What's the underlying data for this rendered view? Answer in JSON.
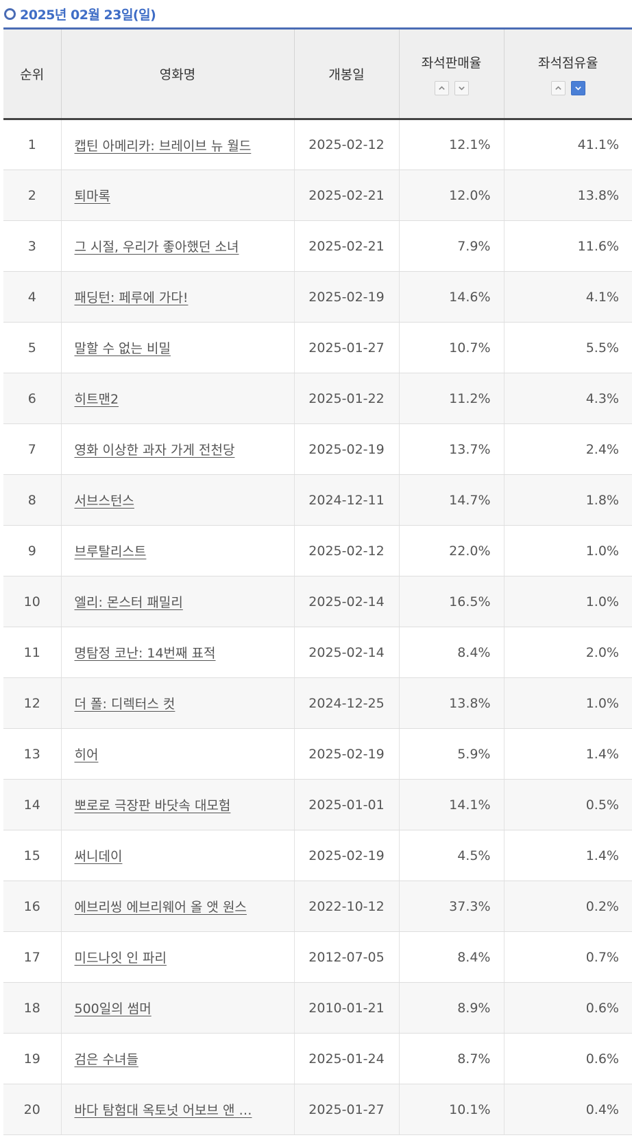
{
  "date_heading": "2025년 02월 23일(일)",
  "columns": {
    "rank": "순위",
    "title": "영화명",
    "release": "개봉일",
    "seat_sales": "좌석판매율",
    "seat_share": "좌석점유율"
  },
  "sort": {
    "seat_sales": "none",
    "seat_share": "descending"
  },
  "rows": [
    {
      "rank": "1",
      "title": "캡틴 아메리카: 브레이브 뉴 월드",
      "release": "2025-02-12",
      "seat_sales": "12.1%",
      "seat_share": "41.1%"
    },
    {
      "rank": "2",
      "title": "퇴마록",
      "release": "2025-02-21",
      "seat_sales": "12.0%",
      "seat_share": "13.8%"
    },
    {
      "rank": "3",
      "title": "그 시절, 우리가 좋아했던 소녀",
      "release": "2025-02-21",
      "seat_sales": "7.9%",
      "seat_share": "11.6%"
    },
    {
      "rank": "4",
      "title": "패딩턴: 페루에 가다!",
      "release": "2025-02-19",
      "seat_sales": "14.6%",
      "seat_share": "4.1%"
    },
    {
      "rank": "5",
      "title": "말할 수 없는 비밀",
      "release": "2025-01-27",
      "seat_sales": "10.7%",
      "seat_share": "5.5%"
    },
    {
      "rank": "6",
      "title": "히트맨2",
      "release": "2025-01-22",
      "seat_sales": "11.2%",
      "seat_share": "4.3%"
    },
    {
      "rank": "7",
      "title": "영화 이상한 과자 가게 전천당",
      "release": "2025-02-19",
      "seat_sales": "13.7%",
      "seat_share": "2.4%"
    },
    {
      "rank": "8",
      "title": "서브스턴스",
      "release": "2024-12-11",
      "seat_sales": "14.7%",
      "seat_share": "1.8%"
    },
    {
      "rank": "9",
      "title": "브루탈리스트",
      "release": "2025-02-12",
      "seat_sales": "22.0%",
      "seat_share": "1.0%"
    },
    {
      "rank": "10",
      "title": "엘리: 몬스터 패밀리",
      "release": "2025-02-14",
      "seat_sales": "16.5%",
      "seat_share": "1.0%"
    },
    {
      "rank": "11",
      "title": "명탐정 코난: 14번째 표적",
      "release": "2025-02-14",
      "seat_sales": "8.4%",
      "seat_share": "2.0%"
    },
    {
      "rank": "12",
      "title": "더 폴: 디렉터스 컷",
      "release": "2024-12-25",
      "seat_sales": "13.8%",
      "seat_share": "1.0%"
    },
    {
      "rank": "13",
      "title": "히어",
      "release": "2025-02-19",
      "seat_sales": "5.9%",
      "seat_share": "1.4%"
    },
    {
      "rank": "14",
      "title": "뽀로로 극장판 바닷속 대모험",
      "release": "2025-01-01",
      "seat_sales": "14.1%",
      "seat_share": "0.5%"
    },
    {
      "rank": "15",
      "title": "써니데이",
      "release": "2025-02-19",
      "seat_sales": "4.5%",
      "seat_share": "1.4%"
    },
    {
      "rank": "16",
      "title": "에브리씽 에브리웨어 올 앳 원스",
      "release": "2022-10-12",
      "seat_sales": "37.3%",
      "seat_share": "0.2%"
    },
    {
      "rank": "17",
      "title": "미드나잇 인 파리",
      "release": "2012-07-05",
      "seat_sales": "8.4%",
      "seat_share": "0.7%"
    },
    {
      "rank": "18",
      "title": "500일의 썸머",
      "release": "2010-01-21",
      "seat_sales": "8.9%",
      "seat_share": "0.6%"
    },
    {
      "rank": "19",
      "title": "검은 수녀들",
      "release": "2025-01-24",
      "seat_sales": "8.7%",
      "seat_share": "0.6%"
    },
    {
      "rank": "20",
      "title": "바다 탐험대 옥토넛 어보브 앤 …",
      "release": "2025-01-27",
      "seat_sales": "10.1%",
      "seat_share": "0.4%"
    }
  ]
}
